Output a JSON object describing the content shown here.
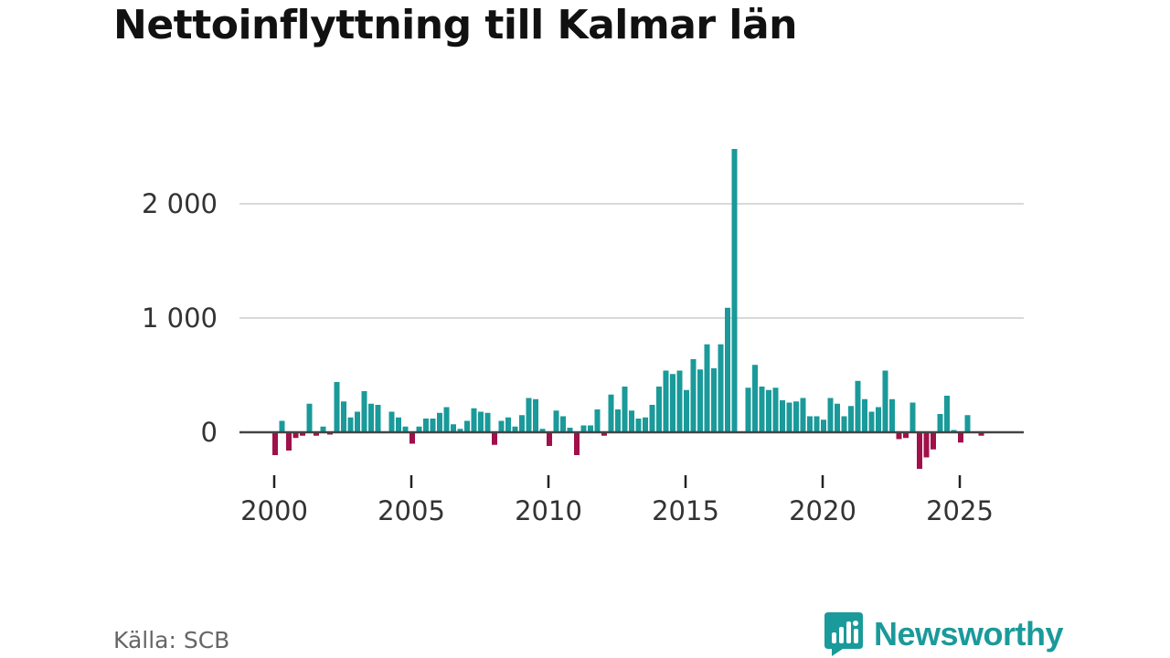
{
  "title": "Nettoinflyttning till Kalmar län",
  "source": "Källa: SCB",
  "brand": {
    "name": "Newsworthy",
    "icon": "newsworthy-logo-icon"
  },
  "colors": {
    "positive": "#1a9a9a",
    "negative": "#a0104a",
    "grid": "#d9d9d9",
    "zero_line": "#444444",
    "brand": "#1a9a9a"
  },
  "chart_data": {
    "type": "bar",
    "title": "Nettoinflyttning till Kalmar län",
    "xlabel": "",
    "ylabel": "",
    "frequency": "quarterly",
    "start": "2000-Q1",
    "ylim": [
      -350,
      2500
    ],
    "yticks": [
      0,
      1000,
      2000
    ],
    "ytick_labels": [
      "0",
      "1 000",
      "2 000"
    ],
    "xticks": [
      2000,
      2005,
      2010,
      2015,
      2020,
      2025
    ],
    "xtick_labels": [
      "2000",
      "2005",
      "2010",
      "2015",
      "2020",
      "2025"
    ],
    "grid": true,
    "values": [
      -200,
      100,
      -160,
      -50,
      -30,
      250,
      -30,
      50,
      -20,
      440,
      270,
      130,
      180,
      360,
      250,
      240,
      0,
      180,
      130,
      50,
      -100,
      50,
      120,
      120,
      170,
      220,
      70,
      30,
      100,
      210,
      180,
      170,
      -110,
      100,
      130,
      50,
      150,
      300,
      290,
      30,
      -120,
      190,
      140,
      40,
      -200,
      60,
      60,
      200,
      -30,
      330,
      200,
      400,
      190,
      120,
      130,
      240,
      400,
      540,
      510,
      540,
      370,
      640,
      550,
      770,
      560,
      770,
      1090,
      2480,
      0,
      390,
      590,
      400,
      370,
      390,
      280,
      260,
      270,
      300,
      140,
      140,
      110,
      300,
      250,
      140,
      230,
      450,
      290,
      180,
      220,
      540,
      290,
      -60,
      -50,
      260,
      -320,
      -220,
      -150,
      160,
      320,
      20,
      -90,
      150,
      0,
      -30
    ]
  }
}
